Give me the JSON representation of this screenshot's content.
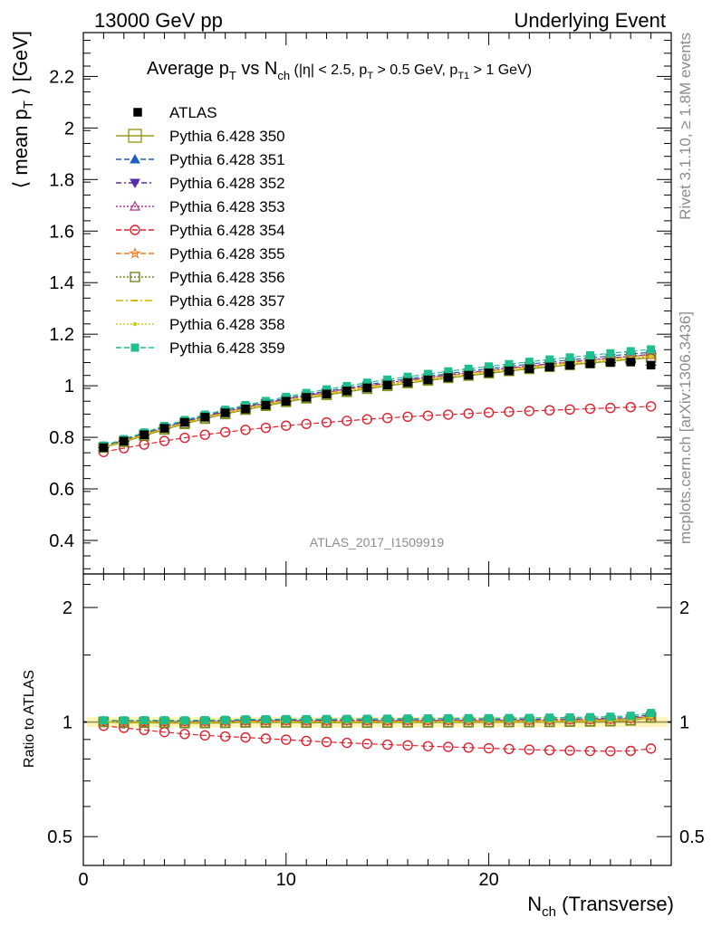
{
  "header": {
    "left": "13000 GeV pp",
    "right": "Underlying Event"
  },
  "side_labels": {
    "rivet": "Rivet 3.1.10, ≥ 1.8M events",
    "mcplots": "mcplots.cern.ch [arXiv:1306.3436]"
  },
  "watermark": "ATLAS_2017_I1509919",
  "chart_data": {
    "type": "line",
    "title": "Average pT vs Nch (|η| < 2.5, pT > 0.5 GeV, pT1 > 1 GeV)",
    "title_parts": {
      "a": "Average p",
      "a_sub": "T",
      "b": " vs N",
      "b_sub": "ch",
      "c": " (|η| < 2.5, p",
      "c_sub": "T",
      "d": " > 0.5 GeV, p",
      "d_sub": "T1",
      "e": " > 1 GeV)"
    },
    "xlabel": "Nch (Transverse)",
    "xlabel_parts": {
      "main": "N",
      "sub": "ch",
      "rest": " (Transverse)"
    },
    "ylabel": "⟨ mean pT ⟩ [GeV]",
    "ylabel_parts": {
      "pre": "⟨ mean p",
      "sub": "T",
      "post": " ⟩ [GeV]"
    },
    "ratio_ylabel": "Ratio to ATLAS",
    "xlim": [
      0,
      29
    ],
    "ylim": [
      0.27,
      2.37
    ],
    "ratio_ylim": [
      0.42,
      2.45
    ],
    "ratio_log_scale": true,
    "x_ticks": [
      "0",
      "10",
      "20"
    ],
    "y_ticks": [
      "0.4",
      "0.6",
      "0.8",
      "1",
      "1.2",
      "1.4",
      "1.6",
      "1.8",
      "2",
      "2.2"
    ],
    "ratio_ticks": [
      "0.5",
      "1",
      "2"
    ],
    "legend_position": "top-left",
    "x": [
      1,
      2,
      3,
      4,
      5,
      6,
      7,
      8,
      9,
      10,
      11,
      12,
      13,
      14,
      15,
      16,
      17,
      18,
      19,
      20,
      21,
      22,
      23,
      24,
      25,
      26,
      27,
      28
    ],
    "atlas": {
      "name": "ATLAS",
      "values": [
        0.76,
        0.785,
        0.81,
        0.835,
        0.858,
        0.878,
        0.895,
        0.91,
        0.925,
        0.94,
        0.955,
        0.968,
        0.98,
        0.992,
        1.003,
        1.013,
        1.023,
        1.032,
        1.041,
        1.05,
        1.058,
        1.066,
        1.073,
        1.079,
        1.085,
        1.09,
        1.092,
        1.08
      ],
      "color": "#000000"
    },
    "series": [
      {
        "name": "Pythia 6.428 350",
        "color": "#9a9a1e",
        "marker": "square-open",
        "dash": "",
        "values": [
          0.76,
          0.782,
          0.806,
          0.83,
          0.852,
          0.872,
          0.89,
          0.907,
          0.922,
          0.937,
          0.951,
          0.964,
          0.976,
          0.988,
          0.999,
          1.01,
          1.02,
          1.03,
          1.039,
          1.048,
          1.057,
          1.065,
          1.073,
          1.081,
          1.088,
          1.095,
          1.102,
          1.109
        ]
      },
      {
        "name": "Pythia 6.428 351",
        "color": "#1f5fbf",
        "marker": "triangle-up",
        "dash": "6,3",
        "values": [
          0.765,
          0.79,
          0.815,
          0.84,
          0.863,
          0.884,
          0.903,
          0.92,
          0.936,
          0.951,
          0.966,
          0.979,
          0.992,
          1.004,
          1.016,
          1.027,
          1.037,
          1.047,
          1.057,
          1.066,
          1.075,
          1.084,
          1.092,
          1.1,
          1.108,
          1.116,
          1.123,
          1.13
        ]
      },
      {
        "name": "Pythia 6.428 352",
        "color": "#5a2ca8",
        "marker": "triangle-down",
        "dash": "6,3,2,3",
        "values": [
          0.764,
          0.788,
          0.813,
          0.837,
          0.86,
          0.881,
          0.9,
          0.917,
          0.933,
          0.948,
          0.962,
          0.975,
          0.988,
          1.0,
          1.011,
          1.022,
          1.032,
          1.042,
          1.051,
          1.06,
          1.069,
          1.077,
          1.085,
          1.093,
          1.101,
          1.108,
          1.115,
          1.122
        ]
      },
      {
        "name": "Pythia 6.428 353",
        "color": "#b0308a",
        "marker": "triangle-up-open",
        "dash": "2,2",
        "values": [
          0.763,
          0.787,
          0.812,
          0.836,
          0.859,
          0.88,
          0.899,
          0.916,
          0.932,
          0.947,
          0.961,
          0.974,
          0.987,
          0.999,
          1.01,
          1.021,
          1.031,
          1.041,
          1.05,
          1.059,
          1.068,
          1.076,
          1.084,
          1.092,
          1.1,
          1.107,
          1.114,
          1.121
        ]
      },
      {
        "name": "Pythia 6.428 354",
        "color": "#e0202e",
        "marker": "circle-open",
        "dash": "6,3",
        "values": [
          0.743,
          0.758,
          0.772,
          0.786,
          0.798,
          0.81,
          0.82,
          0.829,
          0.837,
          0.845,
          0.852,
          0.858,
          0.864,
          0.87,
          0.875,
          0.88,
          0.884,
          0.888,
          0.892,
          0.896,
          0.899,
          0.902,
          0.905,
          0.908,
          0.911,
          0.914,
          0.917,
          0.92
        ]
      },
      {
        "name": "Pythia 6.428 355",
        "color": "#f07a1e",
        "marker": "star-open",
        "dash": "6,3",
        "values": [
          0.762,
          0.786,
          0.811,
          0.835,
          0.857,
          0.878,
          0.897,
          0.914,
          0.93,
          0.945,
          0.959,
          0.972,
          0.985,
          0.997,
          1.008,
          1.019,
          1.029,
          1.039,
          1.048,
          1.057,
          1.066,
          1.074,
          1.082,
          1.09,
          1.098,
          1.105,
          1.112,
          1.119
        ]
      },
      {
        "name": "Pythia 6.428 356",
        "color": "#6e8a1e",
        "marker": "square-open",
        "dash": "2,2",
        "values": [
          0.761,
          0.784,
          0.808,
          0.832,
          0.854,
          0.874,
          0.892,
          0.909,
          0.924,
          0.939,
          0.953,
          0.966,
          0.978,
          0.99,
          1.001,
          1.012,
          1.022,
          1.032,
          1.041,
          1.05,
          1.059,
          1.067,
          1.075,
          1.083,
          1.09,
          1.097,
          1.104,
          1.111
        ]
      },
      {
        "name": "Pythia 6.428 357",
        "color": "#d9b400",
        "marker": "dash",
        "dash": "8,3,2,3",
        "values": [
          0.761,
          0.784,
          0.809,
          0.833,
          0.855,
          0.875,
          0.893,
          0.91,
          0.925,
          0.94,
          0.954,
          0.967,
          0.979,
          0.991,
          1.002,
          1.013,
          1.023,
          1.033,
          1.042,
          1.051,
          1.06,
          1.068,
          1.076,
          1.084,
          1.091,
          1.098,
          1.105,
          1.112
        ]
      },
      {
        "name": "Pythia 6.428 358",
        "color": "#c8d21e",
        "marker": "dot",
        "dash": "2,2",
        "values": [
          0.762,
          0.785,
          0.81,
          0.834,
          0.856,
          0.876,
          0.895,
          0.912,
          0.927,
          0.942,
          0.956,
          0.969,
          0.981,
          0.993,
          1.004,
          1.015,
          1.025,
          1.035,
          1.044,
          1.053,
          1.062,
          1.07,
          1.078,
          1.086,
          1.093,
          1.1,
          1.107,
          1.114
        ]
      },
      {
        "name": "Pythia 6.428 359",
        "color": "#1ebf8f",
        "marker": "square-filled",
        "dash": "6,3",
        "values": [
          0.768,
          0.793,
          0.819,
          0.844,
          0.867,
          0.888,
          0.907,
          0.925,
          0.941,
          0.957,
          0.972,
          0.986,
          0.999,
          1.012,
          1.024,
          1.035,
          1.046,
          1.056,
          1.066,
          1.075,
          1.084,
          1.093,
          1.102,
          1.11,
          1.118,
          1.126,
          1.134,
          1.141
        ]
      }
    ]
  }
}
